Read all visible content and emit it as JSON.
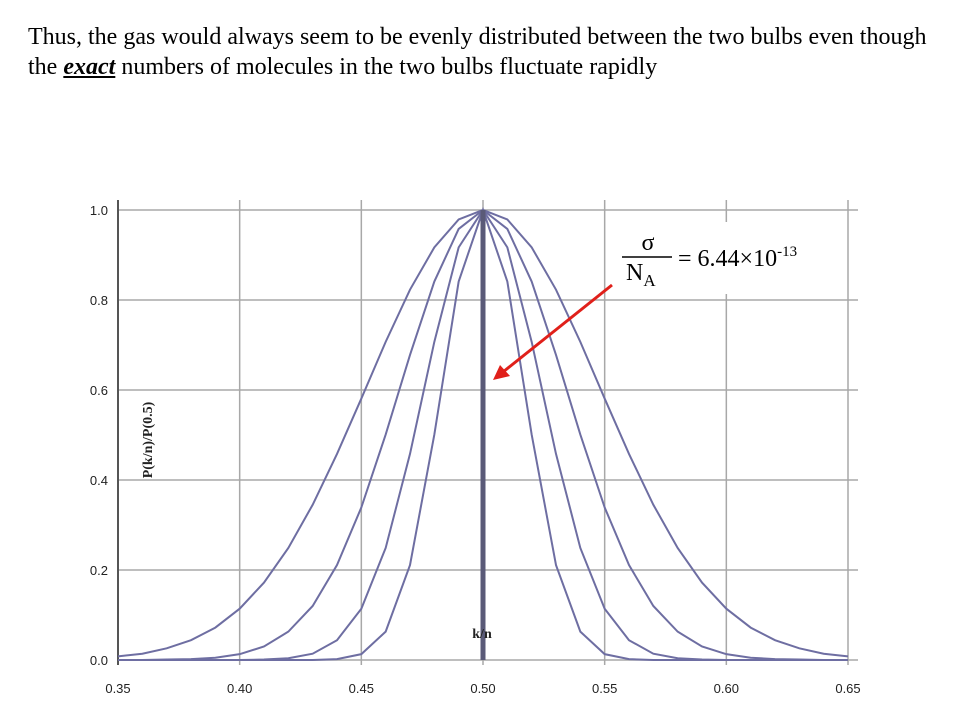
{
  "header": {
    "text_before": "Thus, the gas would always seem to be evenly distributed between the two bulbs even though the ",
    "emphasis": "exact",
    "text_after": " numbers of molecules in the two bulbs fluctuate rapidly"
  },
  "chart_data": {
    "type": "line",
    "ylabel": "P(k/n)/P(0.5)",
    "xlabel": "k/n",
    "x": [
      0.35,
      0.36,
      0.37,
      0.38,
      0.39,
      0.4,
      0.41,
      0.42,
      0.43,
      0.44,
      0.45,
      0.46,
      0.47,
      0.48,
      0.49,
      0.5,
      0.51,
      0.52,
      0.53,
      0.54,
      0.55,
      0.56,
      0.57,
      0.58,
      0.59,
      0.6,
      0.61,
      0.62,
      0.63,
      0.64,
      0.65
    ],
    "xlim": [
      0.35,
      0.65
    ],
    "ylim": [
      0,
      1
    ],
    "xticks": [
      {
        "value": 0.35,
        "label": "0.35"
      },
      {
        "value": 0.4,
        "label": "0.40"
      },
      {
        "value": 0.45,
        "label": "0.45"
      },
      {
        "value": 0.5,
        "label": "0.50"
      },
      {
        "value": 0.55,
        "label": "0.55"
      },
      {
        "value": 0.6,
        "label": "0.60"
      },
      {
        "value": 0.65,
        "label": "0.65"
      }
    ],
    "yticks": [
      {
        "value": 0,
        "label": "0.0"
      },
      0.2,
      0.4,
      0.6,
      0.8,
      {
        "value": 1,
        "label": "1.0"
      }
    ],
    "grid": true,
    "series": [
      {
        "color": "#6e6ea2",
        "values": [
          0.008,
          0.014,
          0.026,
          0.044,
          0.072,
          0.114,
          0.172,
          0.249,
          0.345,
          0.458,
          0.581,
          0.707,
          0.823,
          0.917,
          0.979,
          1,
          0.979,
          0.917,
          0.823,
          0.707,
          0.581,
          0.458,
          0.345,
          0.249,
          0.172,
          0.114,
          0.072,
          0.044,
          0.026,
          0.014,
          0.008
        ]
      },
      {
        "color": "#6e6ea2",
        "values": [
          0,
          0,
          0.001,
          0.002,
          0.005,
          0.013,
          0.03,
          0.063,
          0.12,
          0.211,
          0.339,
          0.501,
          0.678,
          0.841,
          0.958,
          1,
          0.958,
          0.841,
          0.678,
          0.501,
          0.339,
          0.211,
          0.12,
          0.063,
          0.03,
          0.013,
          0.005,
          0.002,
          0.001,
          0,
          0
        ]
      },
      {
        "color": "#6e6ea2",
        "values": [
          0,
          0,
          0,
          0,
          0,
          0,
          0.001,
          0.004,
          0.014,
          0.044,
          0.114,
          0.249,
          0.458,
          0.707,
          0.917,
          1,
          0.917,
          0.707,
          0.458,
          0.249,
          0.114,
          0.044,
          0.014,
          0.004,
          0.001,
          0,
          0,
          0,
          0,
          0,
          0
        ]
      },
      {
        "color": "#6e6ea2",
        "values": [
          0,
          0,
          0,
          0,
          0,
          0,
          0,
          0,
          0,
          0.002,
          0.013,
          0.063,
          0.211,
          0.501,
          0.841,
          1,
          0.841,
          0.501,
          0.211,
          0.063,
          0.013,
          0.002,
          0,
          0,
          0,
          0,
          0,
          0,
          0,
          0,
          0
        ]
      },
      {
        "color": "#5a5a78",
        "x": [
          0.5,
          0.5
        ],
        "values": [
          0,
          1
        ]
      }
    ],
    "annotation": {
      "numerator": "σ",
      "denominator": "N",
      "denominator_sub": "A",
      "text": "= 6.44×10",
      "exponent": "-13",
      "arrow_color": "#e0201a"
    }
  }
}
